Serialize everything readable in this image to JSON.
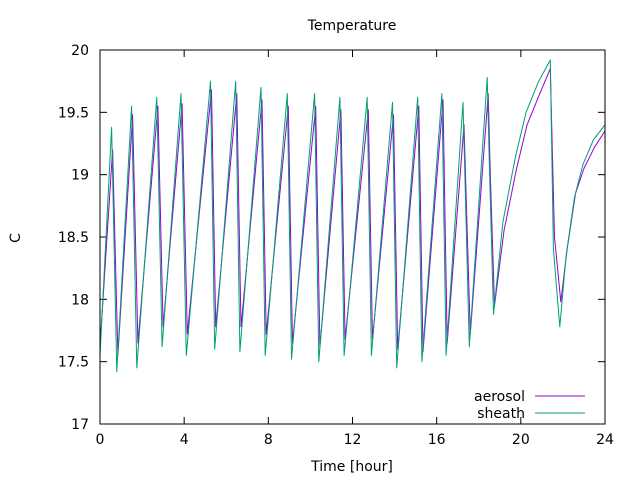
{
  "chart_data": {
    "type": "line",
    "title": "Temperature",
    "xlabel": "Time [hour]",
    "ylabel": "C",
    "xlim": [
      0,
      24
    ],
    "ylim": [
      17,
      20
    ],
    "xticks": [
      0,
      4,
      8,
      12,
      16,
      20,
      24
    ],
    "yticks": [
      17,
      17.5,
      18,
      18.5,
      19,
      19.5,
      20
    ],
    "grid": false,
    "legend": "bottom-right",
    "series": [
      {
        "name": "aerosol",
        "color": "#9400d3",
        "x": [
          0.0,
          0.6,
          0.85,
          1.55,
          1.8,
          2.75,
          3.0,
          3.9,
          4.15,
          5.3,
          5.5,
          6.5,
          6.7,
          7.7,
          7.9,
          8.95,
          9.15,
          10.25,
          10.45,
          11.45,
          11.65,
          12.75,
          12.95,
          13.95,
          14.15,
          15.15,
          15.35,
          16.3,
          16.5,
          17.3,
          17.6,
          18.45,
          18.55,
          18.75,
          19.2,
          19.8,
          20.3,
          20.9,
          21.4,
          21.6,
          21.9,
          22.2,
          22.6,
          23.0,
          23.5,
          24.0
        ],
        "y": [
          17.62,
          19.2,
          17.55,
          19.48,
          17.65,
          19.55,
          17.78,
          19.57,
          17.72,
          19.68,
          17.78,
          19.65,
          17.78,
          19.6,
          17.72,
          19.55,
          17.65,
          19.55,
          17.62,
          19.52,
          17.68,
          19.52,
          17.68,
          19.48,
          17.6,
          19.55,
          17.58,
          19.6,
          17.65,
          19.4,
          17.72,
          19.65,
          19.0,
          17.95,
          18.55,
          19.05,
          19.4,
          19.65,
          19.85,
          18.5,
          17.98,
          18.4,
          18.85,
          19.05,
          19.22,
          19.35
        ]
      },
      {
        "name": "sheath",
        "color": "#009e73",
        "x": [
          0.0,
          0.55,
          0.8,
          1.5,
          1.75,
          2.7,
          2.95,
          3.85,
          4.1,
          5.25,
          5.45,
          6.45,
          6.65,
          7.65,
          7.85,
          8.9,
          9.1,
          10.2,
          10.4,
          11.4,
          11.6,
          12.7,
          12.9,
          13.9,
          14.1,
          15.1,
          15.3,
          16.25,
          16.45,
          17.25,
          17.55,
          18.4,
          18.5,
          18.7,
          19.15,
          19.75,
          20.25,
          20.85,
          21.4,
          21.55,
          21.85,
          22.15,
          22.55,
          22.95,
          23.45,
          24.0
        ],
        "y": [
          17.55,
          19.38,
          17.42,
          19.55,
          17.45,
          19.62,
          17.62,
          19.65,
          17.55,
          19.75,
          17.6,
          19.75,
          17.58,
          19.7,
          17.55,
          19.65,
          17.52,
          19.65,
          17.5,
          19.62,
          17.55,
          19.62,
          17.55,
          19.58,
          17.45,
          19.62,
          17.5,
          19.65,
          17.55,
          19.58,
          17.62,
          19.78,
          19.1,
          17.88,
          18.62,
          19.15,
          19.5,
          19.75,
          19.92,
          18.4,
          17.78,
          18.35,
          18.82,
          19.08,
          19.28,
          19.4
        ]
      }
    ]
  }
}
